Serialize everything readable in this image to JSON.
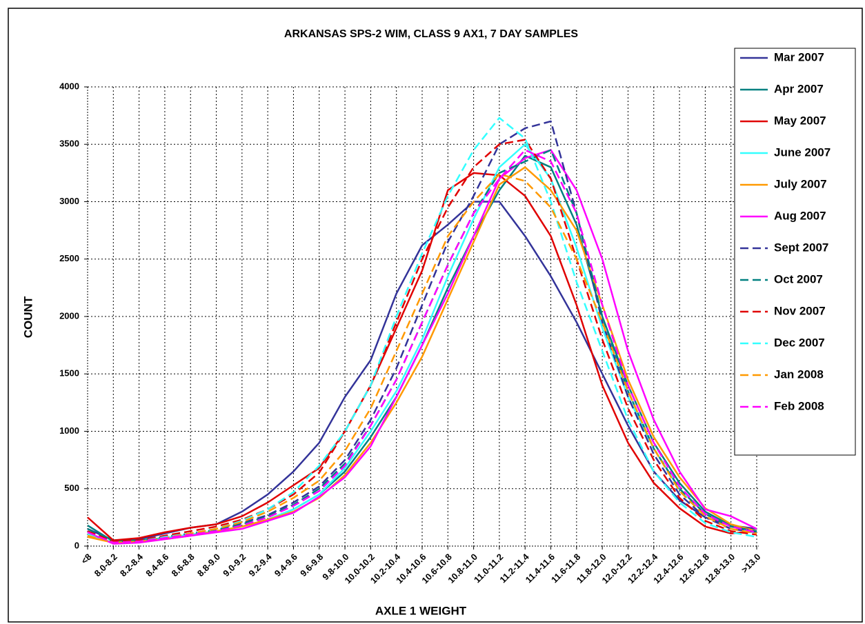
{
  "chart_data": {
    "type": "line",
    "title": "ARKANSAS SPS-2 WIM, CLASS 9 AX1, 7 DAY SAMPLES",
    "y_label": "COUNT",
    "x_label": "AXLE 1 WEIGHT",
    "categories": [
      "<8",
      "8.0-8.2",
      "8.2-8.4",
      "8.4-8.6",
      "8.6-8.8",
      "8.8-9.0",
      "9.0-9.2",
      "9.2-9.4",
      "9.4-9.6",
      "9.6-9.8",
      "9.8-10.0",
      "10.0-10.2",
      "10.2-10.4",
      "10.4-10.6",
      "10.6-10.8",
      "10.8-11.0",
      "11.0-11.2",
      "11.2-11.4",
      "11.4-11.6",
      "11.6-11.8",
      "11.8-12.0",
      "12.0-12.2",
      "12.2-12.4",
      "12.4-12.6",
      "12.6-12.8",
      "12.8-13.0",
      ">13.0"
    ],
    "ylim": [
      0,
      4000
    ],
    "yticks": [
      0,
      500,
      1000,
      1500,
      2000,
      2500,
      3000,
      3500,
      4000
    ],
    "grid": true,
    "legend": "right",
    "series": [
      {
        "name": "Mar 2007",
        "color": "#333399",
        "style": "solid",
        "values": [
          150,
          50,
          60,
          110,
          160,
          190,
          300,
          450,
          650,
          900,
          1300,
          1620,
          2200,
          2620,
          2800,
          3000,
          3000,
          2700,
          2350,
          1950,
          1500,
          1050,
          650,
          400,
          250,
          180,
          150
        ]
      },
      {
        "name": "Apr 2007",
        "color": "#008080",
        "style": "solid",
        "values": [
          180,
          40,
          50,
          70,
          100,
          130,
          170,
          230,
          320,
          450,
          650,
          950,
          1300,
          1750,
          2250,
          2700,
          3100,
          3400,
          3300,
          2800,
          2000,
          1400,
          900,
          550,
          300,
          180,
          130
        ]
      },
      {
        "name": "May 2007",
        "color": "#e00000",
        "style": "solid",
        "values": [
          250,
          50,
          70,
          120,
          160,
          190,
          260,
          380,
          530,
          680,
          1000,
          1400,
          1900,
          2400,
          3100,
          3250,
          3230,
          3050,
          2700,
          2100,
          1400,
          900,
          550,
          330,
          170,
          110,
          130
        ]
      },
      {
        "name": "June 2007",
        "color": "#33ffff",
        "style": "solid",
        "values": [
          100,
          30,
          40,
          70,
          100,
          130,
          170,
          230,
          320,
          450,
          680,
          1000,
          1350,
          1800,
          2350,
          2850,
          3300,
          3500,
          3200,
          2600,
          1900,
          1300,
          850,
          500,
          280,
          170,
          120
        ]
      },
      {
        "name": "July 2007",
        "color": "#ff9900",
        "style": "solid",
        "values": [
          80,
          30,
          40,
          60,
          90,
          130,
          170,
          230,
          300,
          420,
          620,
          900,
          1250,
          1650,
          2150,
          2650,
          3150,
          3300,
          3100,
          2750,
          2100,
          1450,
          950,
          600,
          330,
          190,
          130
        ]
      },
      {
        "name": "Aug 2007",
        "color": "#ff00ff",
        "style": "solid",
        "values": [
          120,
          20,
          30,
          60,
          90,
          120,
          150,
          220,
          290,
          430,
          600,
          870,
          1300,
          1750,
          2200,
          2700,
          3200,
          3380,
          3450,
          3100,
          2500,
          1700,
          1100,
          650,
          320,
          260,
          150
        ]
      },
      {
        "name": "Sept 2007",
        "color": "#333399",
        "style": "dashed",
        "values": [
          130,
          40,
          50,
          80,
          110,
          150,
          200,
          270,
          380,
          520,
          750,
          1100,
          1550,
          2100,
          2650,
          3050,
          3500,
          3640,
          3700,
          2900,
          1950,
          1300,
          800,
          450,
          250,
          150,
          120
        ]
      },
      {
        "name": "Oct 2007",
        "color": "#008080",
        "style": "dashed",
        "values": [
          150,
          40,
          50,
          80,
          110,
          140,
          190,
          260,
          360,
          500,
          720,
          1050,
          1450,
          1950,
          2450,
          2900,
          3250,
          3350,
          3450,
          2900,
          2000,
          1350,
          850,
          500,
          280,
          170,
          130
        ]
      },
      {
        "name": "Nov 2007",
        "color": "#e00000",
        "style": "dashed",
        "values": [
          130,
          40,
          50,
          90,
          130,
          170,
          230,
          320,
          450,
          640,
          1000,
          1400,
          1950,
          2500,
          2950,
          3300,
          3500,
          3540,
          3200,
          2500,
          1800,
          1200,
          750,
          420,
          220,
          130,
          100
        ]
      },
      {
        "name": "Dec 2007",
        "color": "#33ffff",
        "style": "dashed",
        "values": [
          110,
          30,
          40,
          80,
          110,
          150,
          220,
          320,
          470,
          700,
          1000,
          1400,
          2000,
          2550,
          3050,
          3450,
          3730,
          3550,
          3000,
          2300,
          1700,
          1100,
          650,
          380,
          200,
          120,
          80
        ]
      },
      {
        "name": "Jan 2008",
        "color": "#ff9900",
        "style": "dashed",
        "values": [
          90,
          30,
          40,
          70,
          110,
          150,
          210,
          300,
          420,
          570,
          830,
          1200,
          1700,
          2200,
          2700,
          3000,
          3240,
          3180,
          2950,
          2500,
          1950,
          1350,
          850,
          480,
          260,
          150,
          110
        ]
      },
      {
        "name": "Feb 2008",
        "color": "#ff00ff",
        "style": "dashed",
        "values": [
          120,
          30,
          40,
          70,
          100,
          130,
          180,
          250,
          350,
          480,
          700,
          1050,
          1450,
          1950,
          2450,
          2900,
          3200,
          3450,
          3350,
          2900,
          2100,
          1400,
          900,
          520,
          280,
          170,
          120
        ]
      }
    ]
  }
}
